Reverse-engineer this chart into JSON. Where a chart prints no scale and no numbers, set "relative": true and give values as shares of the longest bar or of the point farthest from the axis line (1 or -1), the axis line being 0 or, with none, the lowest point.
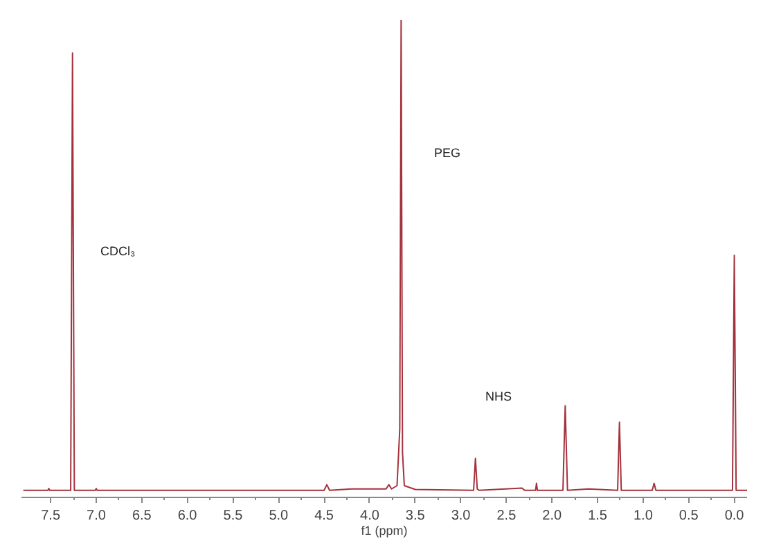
{
  "chart_data": {
    "type": "line",
    "relative": true,
    "xlabel": "f1 (ppm)",
    "xlim": [
      7.82,
      -0.14
    ],
    "xticks": [
      {
        "value": 7.5,
        "label": "7.5"
      },
      {
        "value": 7.0,
        "label": "7.0"
      },
      {
        "value": 6.5,
        "label": "6.5"
      },
      {
        "value": 6.0,
        "label": "6.0"
      },
      {
        "value": 5.5,
        "label": "5.5"
      },
      {
        "value": 5.0,
        "label": "5.0"
      },
      {
        "value": 4.5,
        "label": "4.5"
      },
      {
        "value": 4.0,
        "label": "4.0"
      },
      {
        "value": 3.5,
        "label": "3.5"
      },
      {
        "value": 3.0,
        "label": "3.0"
      },
      {
        "value": 2.5,
        "label": "2.5"
      },
      {
        "value": 2.0,
        "label": "2.0"
      },
      {
        "value": 1.5,
        "label": "1.5"
      },
      {
        "value": 1.0,
        "label": "1.0"
      },
      {
        "value": 0.5,
        "label": "0.5"
      },
      {
        "value": 0.0,
        "label": "0.0"
      }
    ],
    "grid": false,
    "marker": "none",
    "line_style": "solid",
    "series": [
      {
        "color": "#a3323c",
        "x": [
          7.8,
          7.53,
          7.52,
          7.51,
          7.28,
          7.26,
          7.24,
          7.01,
          7.0,
          6.99,
          4.5,
          4.47,
          4.44,
          4.2,
          3.82,
          3.79,
          3.76,
          3.7,
          3.67,
          3.655,
          3.64,
          3.62,
          3.5,
          2.86,
          2.84,
          2.82,
          2.8,
          2.33,
          2.3,
          2.18,
          2.17,
          2.16,
          1.88,
          1.855,
          1.83,
          1.6,
          1.28,
          1.26,
          1.24,
          0.9,
          0.88,
          0.86,
          0.02,
          0.0,
          -0.02,
          -0.14
        ],
        "values": [
          0,
          0,
          0.004,
          0,
          0,
          0.93,
          0,
          0,
          0.004,
          0,
          0,
          0.012,
          0,
          0.003,
          0.003,
          0.012,
          0.003,
          0.01,
          0.13,
          1.0,
          0.08,
          0.01,
          0.002,
          0,
          0.068,
          0.003,
          0,
          0.005,
          0,
          0,
          0.015,
          0,
          0,
          0.18,
          0,
          0.003,
          0,
          0.145,
          0,
          0,
          0.015,
          0,
          0,
          0.5,
          0,
          0
        ]
      }
    ],
    "annotations": [
      "CDCl₃",
      "PEG",
      "NHS"
    ]
  }
}
